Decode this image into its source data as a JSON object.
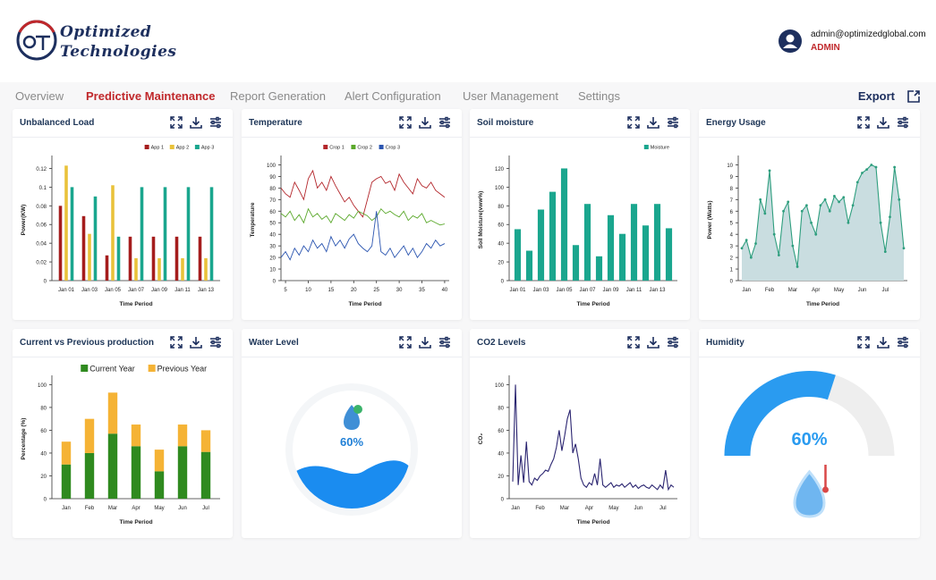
{
  "header": {
    "brand_line1": "Optimized",
    "brand_line2": "Technologies",
    "email": "admin@optimizedglobal.com",
    "role": "ADMIN"
  },
  "nav": {
    "tabs": [
      "Overview",
      "Predictive Maintenance",
      "Report Generation",
      "Alert Configuration",
      "User Management",
      "Settings"
    ],
    "active": 1,
    "export": "Export"
  },
  "chart_data": [
    {
      "type": "bar",
      "title": "Unbalanced Load",
      "xlabel": "Time Period",
      "ylabel": "Power(KW)",
      "legend": "top-right",
      "categories": [
        "Jan 01",
        "Jan 03",
        "Jan 05",
        "Jan 07",
        "Jan 09",
        "Jan 11",
        "Jan 13"
      ],
      "series": [
        {
          "name": "App 1",
          "color": "#a51d1d",
          "values": [
            0.08,
            0.069,
            0.027,
            0.047,
            0.047,
            0.047,
            0.047
          ]
        },
        {
          "name": "App 2",
          "color": "#e9c23a",
          "values": [
            0.123,
            0.05,
            0.102,
            0.024,
            0.024,
            0.024,
            0.024
          ]
        },
        {
          "name": "App 3",
          "color": "#1aa68e",
          "values": [
            0.1,
            0.09,
            0.047,
            0.1,
            0.1,
            0.1,
            0.1
          ]
        }
      ],
      "ylim": [
        0,
        0.13
      ],
      "yticks": [
        0,
        0.02,
        0.04,
        0.06,
        0.08,
        0.1,
        0.12
      ]
    },
    {
      "type": "line",
      "title": "Temperature",
      "xlabel": "Time Period",
      "ylabel": "Temperature",
      "legend": "top",
      "x": [
        4,
        5,
        6,
        7,
        8,
        9,
        10,
        11,
        12,
        13,
        14,
        15,
        16,
        17,
        18,
        19,
        20,
        21,
        22,
        23,
        24,
        25,
        26,
        27,
        28,
        29,
        30,
        31,
        32,
        33,
        34,
        35,
        36,
        37,
        38,
        39,
        40
      ],
      "series": [
        {
          "name": "Crop 1",
          "color": "#b3262b",
          "values": [
            80,
            75,
            72,
            85,
            78,
            70,
            88,
            95,
            80,
            85,
            78,
            90,
            82,
            75,
            68,
            72,
            65,
            60,
            55,
            70,
            85,
            88,
            90,
            84,
            86,
            78,
            92,
            85,
            80,
            75,
            88,
            82,
            80,
            85,
            78,
            75,
            72
          ]
        },
        {
          "name": "Crop 2",
          "color": "#5aa82a",
          "values": [
            58,
            55,
            60,
            52,
            57,
            50,
            62,
            55,
            58,
            53,
            56,
            50,
            58,
            55,
            52,
            57,
            54,
            60,
            58,
            56,
            52,
            55,
            62,
            58,
            60,
            57,
            55,
            60,
            52,
            56,
            54,
            58,
            50,
            52,
            50,
            48,
            49
          ]
        },
        {
          "name": "Crop 3",
          "color": "#2b55b0",
          "values": [
            20,
            25,
            18,
            28,
            22,
            30,
            25,
            35,
            28,
            32,
            25,
            38,
            30,
            35,
            28,
            36,
            40,
            32,
            28,
            25,
            30,
            60,
            25,
            22,
            28,
            20,
            25,
            30,
            22,
            28,
            20,
            25,
            32,
            28,
            35,
            30,
            32
          ]
        }
      ],
      "xlim": [
        4,
        41
      ],
      "xticks": [
        5,
        10,
        15,
        20,
        25,
        30,
        35,
        40
      ],
      "ylim": [
        0,
        105
      ],
      "yticks": [
        0,
        10,
        20,
        30,
        40,
        50,
        60,
        70,
        80,
        90,
        100
      ]
    },
    {
      "type": "bar",
      "title": "Soil moisture",
      "xlabel": "Time Period",
      "ylabel": "Soil Moisture(vww%)",
      "legend": "top-right",
      "categories": [
        "Jan 01",
        null,
        "Jan 03",
        null,
        "Jan 05",
        null,
        "Jan 07",
        null,
        "Jan 09",
        null,
        "Jan 11",
        null,
        "Jan 13",
        null
      ],
      "series": [
        {
          "name": "Moisture",
          "color": "#1aa68e",
          "values": [
            55,
            32,
            76,
            95,
            120,
            38,
            82,
            26,
            70,
            50,
            82,
            59,
            82,
            56
          ]
        }
      ],
      "ylim": [
        0,
        130
      ],
      "yticks": [
        0,
        20,
        40,
        60,
        80,
        100,
        120
      ]
    },
    {
      "type": "line",
      "title": "Energy Usage",
      "xlabel": "Time Period",
      "ylabel": "Power (Watts)",
      "area": true,
      "dots": true,
      "categories": [
        null,
        "Jan",
        null,
        null,
        null,
        null,
        "Feb",
        null,
        null,
        null,
        null,
        "Mar",
        null,
        null,
        null,
        null,
        "Apr",
        null,
        null,
        null,
        null,
        "May",
        null,
        null,
        null,
        null,
        "Jun",
        null,
        null,
        null,
        null,
        "Jul",
        null,
        null,
        null,
        null
      ],
      "series": [
        {
          "name": "Energy",
          "color": "#2e9e7e",
          "values": [
            2.8,
            3.5,
            2,
            3.2,
            7,
            5.8,
            9.5,
            4,
            2.2,
            6,
            6.8,
            3,
            1.2,
            6,
            6.5,
            5,
            4,
            6.5,
            7,
            6,
            7.3,
            6.8,
            7.2,
            5,
            6.5,
            8.5,
            9.3,
            9.6,
            10,
            9.8,
            5,
            2.5,
            5.5,
            9.8,
            7,
            2.8
          ]
        }
      ],
      "ylim": [
        0,
        10.5
      ],
      "yticks": [
        0,
        1,
        2,
        3,
        4,
        5,
        6,
        7,
        8,
        9,
        10
      ]
    },
    {
      "type": "bar",
      "stacked": true,
      "title": "Current vs Previous production",
      "xlabel": "Time Period",
      "ylabel": "Percentage (%)",
      "legend": "top-right",
      "categories": [
        "Jan",
        "Feb",
        "Mar",
        "Apr",
        "May",
        "Jun",
        "Jul"
      ],
      "series": [
        {
          "name": "Current Year",
          "color": "#2f8a1f",
          "values": [
            30,
            40,
            57,
            46,
            24,
            46,
            41
          ]
        },
        {
          "name": "Previous Year",
          "color": "#f5b335",
          "values": [
            20,
            30,
            36,
            19,
            19,
            19,
            19
          ]
        }
      ],
      "ylim": [
        0,
        105
      ],
      "yticks": [
        0,
        20,
        40,
        60,
        80,
        100
      ]
    },
    {
      "type": "liquid",
      "title": "Water Level",
      "value": 60,
      "value_label": "60%",
      "color": "#1a8cf0"
    },
    {
      "type": "line",
      "title": "CO2 Levels",
      "xlabel": "Time Period",
      "ylabel": "CO₂",
      "categories": [
        null,
        "Jan",
        null,
        null,
        null,
        null,
        null,
        null,
        null,
        null,
        "Feb",
        null,
        null,
        null,
        null,
        null,
        null,
        null,
        null,
        "Mar",
        null,
        null,
        null,
        null,
        null,
        null,
        null,
        null,
        "Apr",
        null,
        null,
        null,
        null,
        null,
        null,
        null,
        null,
        "May",
        null,
        null,
        null,
        null,
        null,
        null,
        null,
        null,
        "Jun",
        null,
        null,
        null,
        null,
        null,
        null,
        null,
        null,
        "Jul",
        null,
        null,
        null,
        null
      ],
      "series": [
        {
          "name": "CO2",
          "color": "#2a2470",
          "values": [
            15,
            100,
            12,
            38,
            14,
            50,
            15,
            12,
            18,
            16,
            20,
            22,
            25,
            24,
            30,
            35,
            45,
            60,
            42,
            55,
            70,
            78,
            40,
            48,
            35,
            18,
            12,
            10,
            14,
            12,
            22,
            12,
            35,
            12,
            10,
            12,
            14,
            10,
            12,
            11,
            13,
            10,
            12,
            14,
            10,
            12,
            9,
            11,
            12,
            10,
            9,
            12,
            10,
            8,
            12,
            9,
            25,
            8,
            12,
            10
          ]
        }
      ],
      "ylim": [
        0,
        105
      ],
      "yticks": [
        0,
        20,
        40,
        60,
        80,
        100
      ]
    },
    {
      "type": "gauge",
      "title": "Humidity",
      "value": 60,
      "value_label": "60%",
      "color": "#2a9bf0"
    }
  ]
}
